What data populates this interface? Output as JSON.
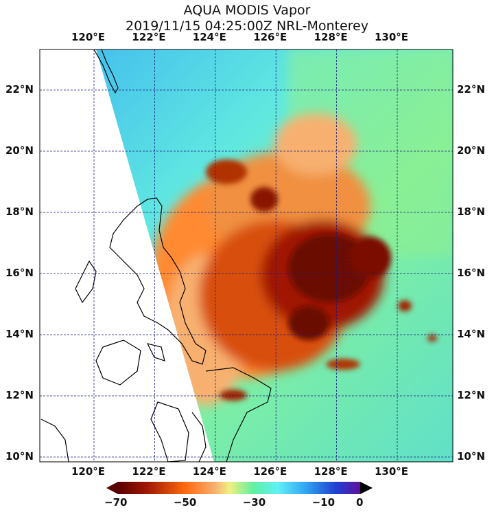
{
  "title": "AQUA MODIS Vapor",
  "subtitle": "2019/11/15 04:25:00Z NRL-Monterey",
  "longitudes": [
    120,
    122,
    124,
    126,
    128,
    130
  ],
  "latitudes": [
    22,
    20,
    18,
    16,
    14,
    12,
    10
  ],
  "lon_labels": [
    "120°E",
    "122°E",
    "124°E",
    "126°E",
    "128°E",
    "130°E"
  ],
  "lat_labels": [
    "22°N",
    "20°N",
    "18°N",
    "16°N",
    "14°N",
    "12°N",
    "10°N"
  ],
  "extent": {
    "lon": [
      118.2,
      131.8
    ],
    "lat": [
      9.8,
      23.3
    ]
  },
  "colorbar": {
    "ticks": [
      "−70",
      "−50",
      "−30",
      "−10",
      "0"
    ],
    "tick_values": [
      -70,
      -50,
      -30,
      -10,
      0
    ],
    "range": [
      -70,
      0
    ],
    "colors": [
      "#5a0000",
      "#a01800",
      "#ff6a10",
      "#f8b070",
      "#f0f080",
      "#60f0a0",
      "#60f0f8",
      "#30a0f0",
      "#2040d0",
      "#6010a0"
    ]
  }
}
